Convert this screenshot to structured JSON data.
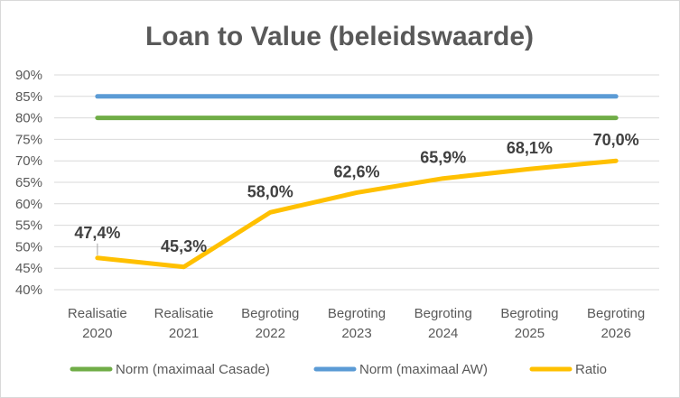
{
  "chart_data": {
    "type": "line",
    "title": "Loan to Value (beleidswaarde)",
    "xlabel": "",
    "ylabel": "",
    "categories": [
      [
        "Realisatie",
        "2020"
      ],
      [
        "Realisatie",
        "2021"
      ],
      [
        "Begroting",
        "2022"
      ],
      [
        "Begroting",
        "2023"
      ],
      [
        "Begroting",
        "2024"
      ],
      [
        "Begroting",
        "2025"
      ],
      [
        "Begroting",
        "2026"
      ]
    ],
    "ylim": [
      40,
      90
    ],
    "ytick_step": 5,
    "ytick_labels": [
      "40%",
      "45%",
      "50%",
      "55%",
      "60%",
      "65%",
      "70%",
      "75%",
      "80%",
      "85%",
      "90%"
    ],
    "grid": true,
    "legend_position": "bottom",
    "series": [
      {
        "name": "Norm (maximaal Casade)",
        "color": "#70ad47",
        "values": [
          80,
          80,
          80,
          80,
          80,
          80,
          80
        ],
        "labels": null
      },
      {
        "name": "Norm (maximaal AW)",
        "color": "#5b9bd5",
        "values": [
          85,
          85,
          85,
          85,
          85,
          85,
          85
        ],
        "labels": null
      },
      {
        "name": "Ratio",
        "color": "#ffc000",
        "values": [
          47.4,
          45.3,
          58.0,
          62.6,
          65.9,
          68.1,
          70.0
        ],
        "labels": [
          "47,4%",
          "45,3%",
          "58,0%",
          "62,6%",
          "65,9%",
          "68,1%",
          "70,0%"
        ]
      }
    ]
  }
}
